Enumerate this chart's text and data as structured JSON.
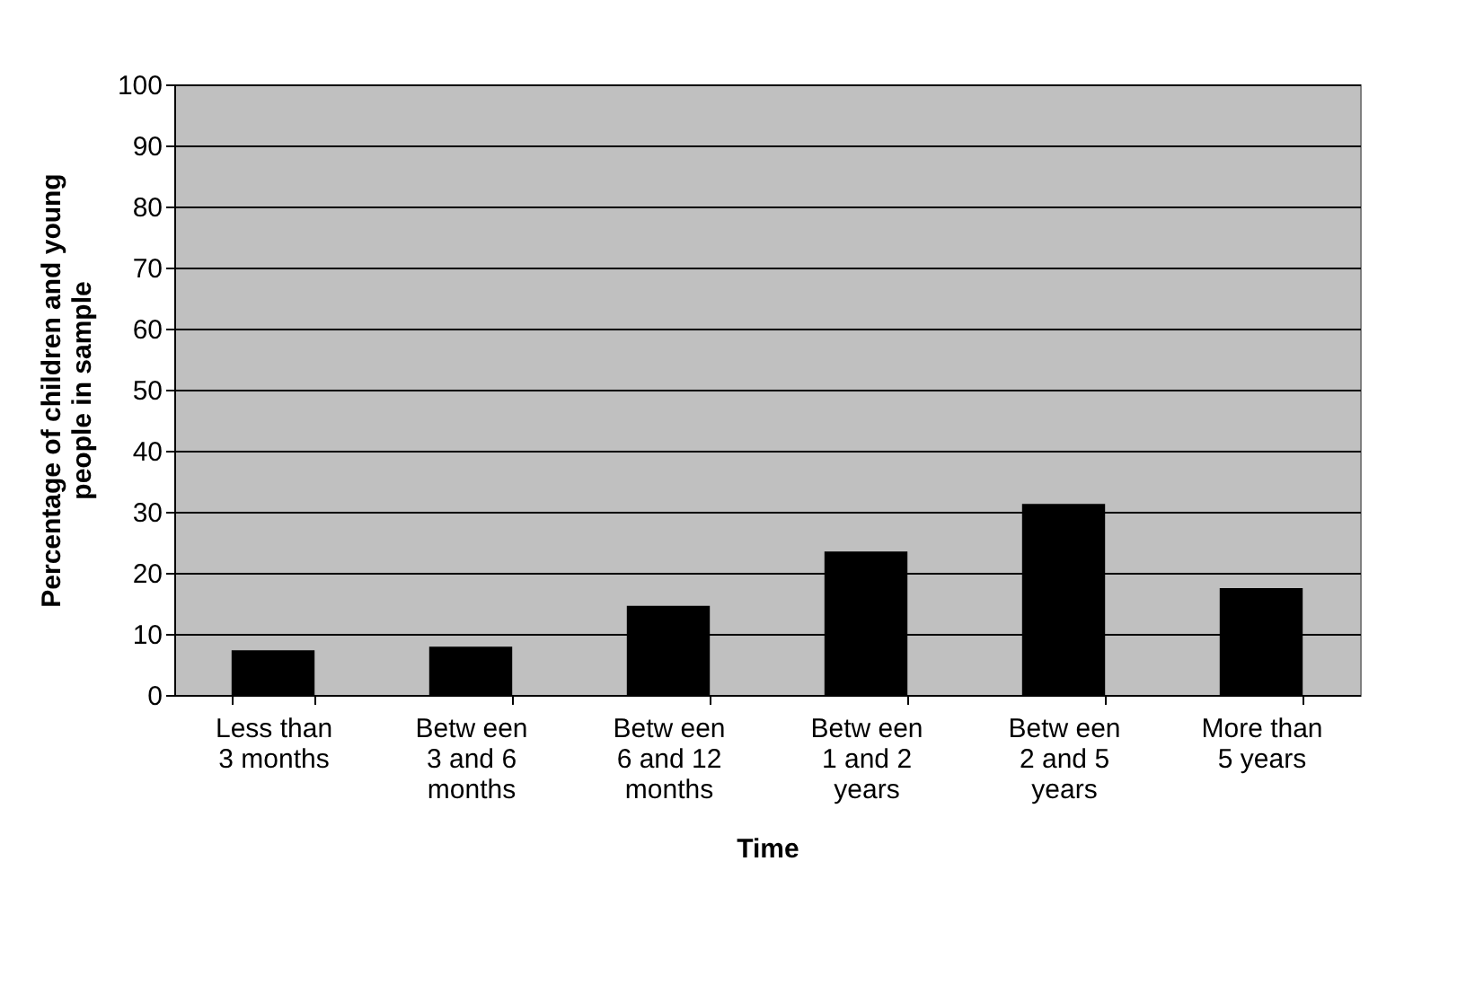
{
  "chart_data": {
    "type": "bar",
    "categories": [
      "Less than\n3 months",
      "Betw een\n3 and 6\nmonths",
      "Betw een\n6 and 12\nmonths",
      "Betw een\n1 and 2\nyears",
      "Betw een\n2 and 5\nyears",
      "More than\n5 years"
    ],
    "values": [
      7.3,
      7.9,
      14.6,
      23.5,
      31.3,
      17.5
    ],
    "color": "#000000",
    "xlabel": "Time",
    "ylabel": "Percentage of children and young\npeople in sample",
    "ylim": [
      0,
      100
    ],
    "yticks": [
      0,
      10,
      20,
      30,
      40,
      50,
      60,
      70,
      80,
      90,
      100
    ],
    "grid": "y"
  }
}
